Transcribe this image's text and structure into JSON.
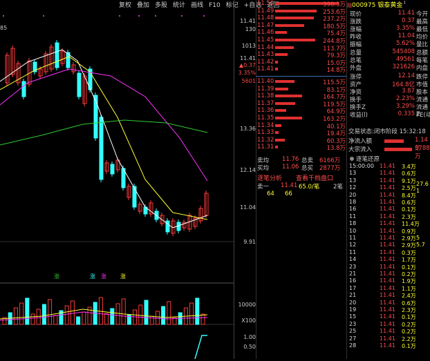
{
  "toolbar": {
    "items": [
      "复权",
      "叠加",
      "多股",
      "统计",
      "画线",
      "F10",
      "标记",
      "+自选",
      "返回"
    ]
  },
  "stock": {
    "code": "000975",
    "name": "银泰黄金",
    "badge": "融",
    "badge2": "I"
  },
  "left_axis": {
    "top_label": "85"
  },
  "price_axis": {
    "labels": [
      "11.41",
      "130",
      "1013",
      "11.41",
      "▲0.37",
      "3.35%",
      "5601",
      "13.36",
      "12.14",
      "11.04",
      "9.91"
    ]
  },
  "volume_axis": {
    "labels": [
      "10000",
      "X100",
      "1.00",
      "0.50"
    ]
  },
  "indicator_labels": [
    "涨",
    "涨",
    "涨",
    "涨"
  ],
  "orderbook": {
    "asks": [
      {
        "p": "11.50",
        "v": "390.3万",
        "w": 1.0
      },
      {
        "p": "11.49",
        "v": "253.6万",
        "w": 0.65
      },
      {
        "p": "11.48",
        "v": "237.2万",
        "w": 0.61
      },
      {
        "p": "11.47",
        "v": "180.5万",
        "w": 0.46
      },
      {
        "p": "11.46",
        "v": "75.4万",
        "w": 0.19
      },
      {
        "p": "11.45",
        "v": "244.8万",
        "w": 0.63
      },
      {
        "p": "11.44",
        "v": "113.7万",
        "w": 0.29
      },
      {
        "p": "11.43",
        "v": "79.3万",
        "w": 0.2
      },
      {
        "p": "11.42",
        "v": "15.0万",
        "w": 0.04
      },
      {
        "p": "11.41",
        "v": "14.8万",
        "w": 0.04
      }
    ],
    "bids": [
      {
        "p": "11.40",
        "v": "115.5万",
        "w": 0.3
      },
      {
        "p": "11.39",
        "v": "83.1万",
        "w": 0.21
      },
      {
        "p": "11.38",
        "v": "164.7万",
        "w": 0.42
      },
      {
        "p": "11.37",
        "v": "119.5万",
        "w": 0.31
      },
      {
        "p": "11.36",
        "v": "64.9万",
        "w": 0.17
      },
      {
        "p": "11.35",
        "v": "163.2万",
        "w": 0.42
      },
      {
        "p": "11.34",
        "v": "40.1万",
        "w": 0.1
      },
      {
        "p": "11.33",
        "v": "19.4万",
        "w": 0.05
      },
      {
        "p": "11.32",
        "v": "60.3万",
        "w": 0.15
      },
      {
        "p": "11.31",
        "v": "13.8万",
        "w": 0.04
      }
    ],
    "avg_ask_label": "卖均",
    "avg_ask": "11.76",
    "total_ask_label": "总卖",
    "total_ask": "6166万",
    "avg_bid_label": "买均",
    "avg_bid": "11.06",
    "total_bid_label": "总买",
    "total_bid": "2877万",
    "analysis_label": "逐笔分析",
    "view_link": "查看千档盘口",
    "sell1_label": "卖一",
    "sell1_price": "11.41",
    "sell1_avg": "65.0/笔",
    "sell1_count": "2笔",
    "row_a": "64",
    "row_b": "66"
  },
  "info": {
    "rows": [
      {
        "l": "现价",
        "v": "11.41",
        "r": "今开"
      },
      {
        "l": "涨跌",
        "v": "0.37",
        "r": "最高"
      },
      {
        "l": "涨幅",
        "v": "3.35%",
        "r": "最低"
      },
      {
        "l": "昨收",
        "v": "11.04",
        "r": "均价"
      },
      {
        "l": "振幅",
        "v": "5.62%",
        "r": "量比"
      },
      {
        "l": "总量",
        "v": "545408",
        "r": "总额"
      },
      {
        "l": "总笔",
        "v": "49561",
        "r": "每笔"
      },
      {
        "l": "外盘",
        "v": "321626",
        "r": "内盘"
      },
      {
        "l": "涨停",
        "v": "12.14",
        "r": "跌停"
      },
      {
        "l": "资产",
        "v": "164.8亿",
        "r": "市值"
      },
      {
        "l": "净资",
        "v": "3.87",
        "r": "股本"
      },
      {
        "l": "换手",
        "v": "2.23%",
        "r": "流通"
      },
      {
        "l": "换手Z",
        "v": "3.29%",
        "r": "流通Z"
      },
      {
        "l": "收益(l)",
        "v": "0.335",
        "r": "PE(动)"
      }
    ],
    "status_label": "交易状态:",
    "status": "闭市阶段 15:32:18",
    "netflow_label": "净流入额",
    "netflow": "1.14亿",
    "block_label": "大宗流入",
    "block": "3788万",
    "ticks_label": "逐笔还原",
    "side_values": [
      "27.6",
      "1",
      "5",
      "5.7"
    ]
  },
  "tape": {
    "rows": [
      {
        "t": "15:00:00",
        "p": "11.41",
        "v": "3.4万"
      },
      {
        "t": "13",
        "p": "11.41",
        "v": "0.6万"
      },
      {
        "t": "13",
        "p": "11.41",
        "v": "9.1万"
      },
      {
        "t": "12",
        "p": "11.41",
        "v": "2.5万"
      },
      {
        "t": "20",
        "p": "11.41",
        "v": "8.4万"
      },
      {
        "t": "18",
        "p": "11.41",
        "v": "0.6万"
      },
      {
        "t": "16",
        "p": "11.41",
        "v": "0.1万"
      },
      {
        "t": "11",
        "p": "11.41",
        "v": "2.3万"
      },
      {
        "t": "18",
        "p": "11.41",
        "v": "11.4万"
      },
      {
        "t": "10",
        "p": "11.41",
        "v": "0.9万"
      },
      {
        "t": "11",
        "p": "11.41",
        "v": "2.9万"
      },
      {
        "t": "12",
        "p": "11.41",
        "v": "2.9万"
      },
      {
        "t": "11",
        "p": "11.41",
        "v": "0.3万"
      },
      {
        "t": "14",
        "p": "11.41",
        "v": "1.7万"
      },
      {
        "t": "23",
        "p": "11.41",
        "v": "0.1万"
      },
      {
        "t": "21",
        "p": "11.41",
        "v": "0.2万"
      },
      {
        "t": "16",
        "p": "11.41",
        "v": "1.9万"
      },
      {
        "t": "17",
        "p": "11.41",
        "v": "1.1万"
      },
      {
        "t": "21",
        "p": "11.41",
        "v": "2.4万"
      },
      {
        "t": "20",
        "p": "11.41",
        "v": "0.6万"
      },
      {
        "t": "19",
        "p": "11.41",
        "v": "2.3万"
      },
      {
        "t": "15",
        "p": "11.41",
        "v": "0.1万"
      },
      {
        "t": "23",
        "p": "11.41",
        "v": "0.2万"
      },
      {
        "t": "25",
        "p": "11.41",
        "v": "0.2万"
      },
      {
        "t": "27",
        "p": "11.41",
        "v": "2.2万"
      },
      {
        "t": "28",
        "p": "11.41",
        "v": "0.1万"
      }
    ]
  },
  "colors": {
    "up": "#ff3b3b",
    "down": "#33ffff",
    "ma5": "#ffffff",
    "ma10": "#ffff33",
    "ma20": "#ff33ff",
    "ma60": "#33cc33"
  }
}
